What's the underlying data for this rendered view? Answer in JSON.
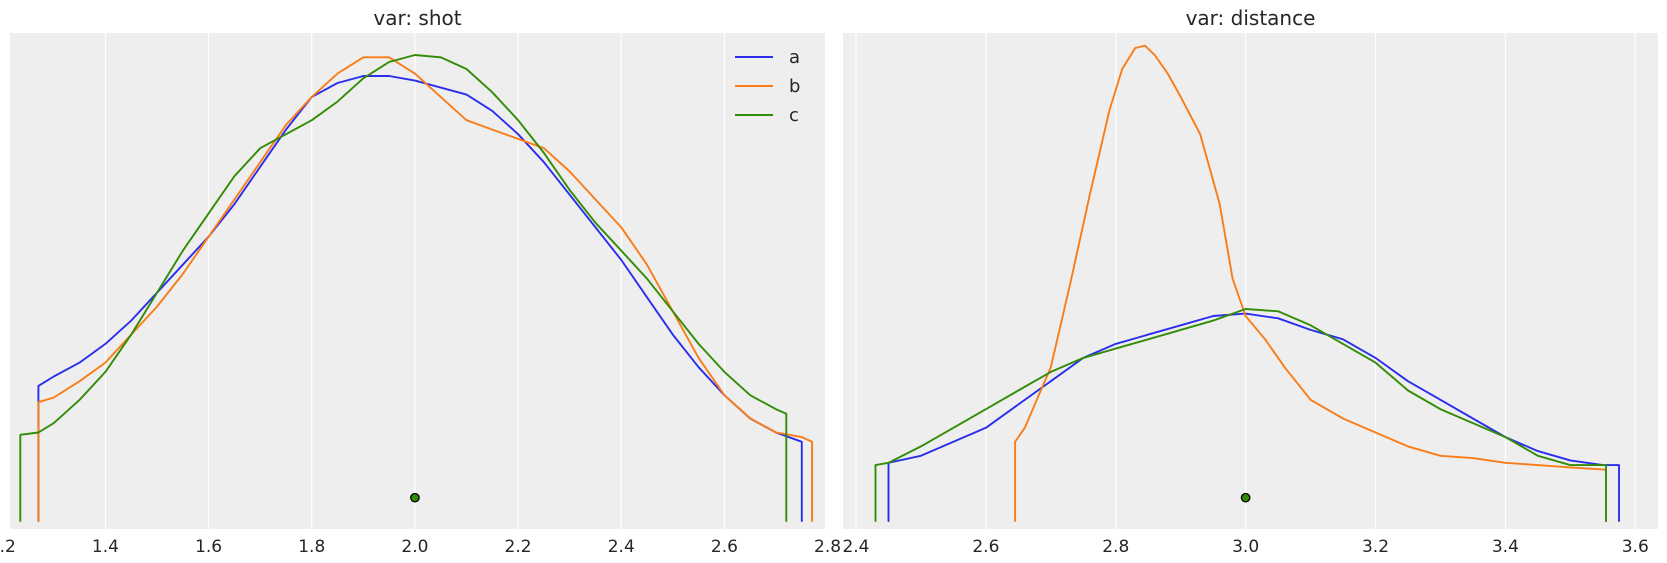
{
  "chart_data": [
    {
      "type": "line",
      "title": "var: shot",
      "xlabel": "",
      "ylabel": "",
      "xlim": [
        1.215,
        2.795
      ],
      "ylim": [
        0,
        1.0
      ],
      "xticks": [
        1.2,
        1.4,
        1.6,
        1.8,
        2.0,
        2.2,
        2.4,
        2.6,
        2.8
      ],
      "xtick_labels": [
        "1.2",
        "1.4",
        "1.6",
        "1.8",
        "2.0",
        "2.2",
        "2.4",
        "2.6",
        "2.8"
      ],
      "grid": "x",
      "legend": {
        "position": "top-right",
        "entries": [
          "a",
          "b",
          "c"
        ]
      },
      "point_marker": {
        "x": 2.0,
        "y": 0.05
      },
      "series": [
        {
          "name": "a",
          "color": "#2a2eec",
          "x": [
            1.27,
            1.27,
            1.3,
            1.35,
            1.4,
            1.45,
            1.5,
            1.55,
            1.6,
            1.65,
            1.7,
            1.75,
            1.8,
            1.85,
            1.9,
            1.95,
            2.0,
            2.05,
            2.1,
            2.15,
            2.2,
            2.25,
            2.3,
            2.35,
            2.4,
            2.45,
            2.5,
            2.55,
            2.6,
            2.65,
            2.7,
            2.75,
            2.75
          ],
          "y": [
            0.0,
            0.29,
            0.31,
            0.34,
            0.38,
            0.43,
            0.49,
            0.55,
            0.61,
            0.68,
            0.76,
            0.84,
            0.91,
            0.94,
            0.955,
            0.955,
            0.945,
            0.93,
            0.915,
            0.88,
            0.83,
            0.77,
            0.7,
            0.63,
            0.56,
            0.48,
            0.4,
            0.33,
            0.27,
            0.22,
            0.19,
            0.17,
            0.0
          ]
        },
        {
          "name": "b",
          "color": "#fa7c17",
          "x": [
            1.27,
            1.27,
            1.3,
            1.35,
            1.4,
            1.45,
            1.5,
            1.55,
            1.6,
            1.65,
            1.7,
            1.75,
            1.8,
            1.85,
            1.9,
            1.95,
            2.0,
            2.05,
            2.1,
            2.15,
            2.2,
            2.25,
            2.3,
            2.35,
            2.4,
            2.45,
            2.5,
            2.55,
            2.6,
            2.65,
            2.7,
            2.75,
            2.77,
            2.77
          ],
          "y": [
            0.0,
            0.255,
            0.265,
            0.3,
            0.34,
            0.4,
            0.46,
            0.53,
            0.61,
            0.69,
            0.77,
            0.85,
            0.91,
            0.96,
            0.995,
            0.995,
            0.96,
            0.91,
            0.86,
            0.84,
            0.82,
            0.8,
            0.75,
            0.69,
            0.63,
            0.55,
            0.45,
            0.35,
            0.27,
            0.22,
            0.19,
            0.18,
            0.17,
            0.0
          ]
        },
        {
          "name": "c",
          "color": "#328c06",
          "x": [
            1.235,
            1.235,
            1.27,
            1.3,
            1.35,
            1.4,
            1.45,
            1.5,
            1.55,
            1.6,
            1.65,
            1.7,
            1.75,
            1.8,
            1.85,
            1.9,
            1.95,
            2.0,
            2.05,
            2.1,
            2.15,
            2.2,
            2.25,
            2.3,
            2.35,
            2.4,
            2.45,
            2.5,
            2.55,
            2.6,
            2.65,
            2.7,
            2.72,
            2.72
          ],
          "y": [
            0.0,
            0.185,
            0.19,
            0.21,
            0.26,
            0.32,
            0.4,
            0.49,
            0.58,
            0.66,
            0.74,
            0.8,
            0.83,
            0.86,
            0.9,
            0.95,
            0.985,
            1.0,
            0.995,
            0.97,
            0.92,
            0.86,
            0.79,
            0.71,
            0.64,
            0.58,
            0.52,
            0.45,
            0.38,
            0.32,
            0.27,
            0.24,
            0.23,
            0.0
          ]
        }
      ]
    },
    {
      "type": "line",
      "title": "var: distance",
      "xlabel": "",
      "ylabel": "",
      "xlim": [
        2.38,
        3.635
      ],
      "ylim": [
        0,
        1.0
      ],
      "xticks": [
        2.4,
        2.6,
        2.8,
        3.0,
        3.2,
        3.4,
        3.6
      ],
      "xtick_labels": [
        "2.4",
        "2.6",
        "2.8",
        "3.0",
        "3.2",
        "3.4",
        "3.6"
      ],
      "grid": "x",
      "point_marker": {
        "x": 3.0,
        "y": 0.05
      },
      "series": [
        {
          "name": "a",
          "color": "#2a2eec",
          "x": [
            2.45,
            2.45,
            2.5,
            2.55,
            2.6,
            2.65,
            2.7,
            2.75,
            2.8,
            2.85,
            2.9,
            2.95,
            3.0,
            3.05,
            3.1,
            3.15,
            3.2,
            3.25,
            3.3,
            3.35,
            3.4,
            3.45,
            3.5,
            3.55,
            3.575,
            3.575
          ],
          "y": [
            0.0,
            0.125,
            0.14,
            0.17,
            0.2,
            0.25,
            0.3,
            0.35,
            0.38,
            0.4,
            0.42,
            0.44,
            0.445,
            0.435,
            0.41,
            0.39,
            0.35,
            0.3,
            0.26,
            0.22,
            0.18,
            0.15,
            0.13,
            0.12,
            0.12,
            0.0
          ]
        },
        {
          "name": "b",
          "color": "#fa7c17",
          "x": [
            2.645,
            2.645,
            2.66,
            2.7,
            2.73,
            2.76,
            2.79,
            2.81,
            2.83,
            2.845,
            2.86,
            2.88,
            2.9,
            2.93,
            2.96,
            2.98,
            3.0,
            3.03,
            3.06,
            3.1,
            3.15,
            3.2,
            3.25,
            3.3,
            3.35,
            3.4,
            3.45,
            3.5,
            3.555,
            3.555
          ],
          "y": [
            0.0,
            0.17,
            0.2,
            0.33,
            0.51,
            0.7,
            0.88,
            0.97,
            1.015,
            1.02,
            1.0,
            0.96,
            0.91,
            0.83,
            0.68,
            0.52,
            0.44,
            0.39,
            0.33,
            0.26,
            0.22,
            0.19,
            0.16,
            0.14,
            0.135,
            0.125,
            0.12,
            0.115,
            0.11,
            0.0
          ]
        },
        {
          "name": "c",
          "color": "#328c06",
          "x": [
            2.43,
            2.43,
            2.45,
            2.5,
            2.55,
            2.6,
            2.65,
            2.7,
            2.75,
            2.8,
            2.85,
            2.9,
            2.95,
            3.0,
            3.05,
            3.1,
            3.15,
            3.2,
            3.25,
            3.3,
            3.35,
            3.4,
            3.45,
            3.5,
            3.555,
            3.555
          ],
          "y": [
            0.0,
            0.12,
            0.125,
            0.16,
            0.2,
            0.24,
            0.28,
            0.32,
            0.35,
            0.37,
            0.39,
            0.41,
            0.43,
            0.455,
            0.45,
            0.42,
            0.38,
            0.34,
            0.28,
            0.24,
            0.21,
            0.18,
            0.14,
            0.12,
            0.12,
            0.0
          ]
        }
      ]
    }
  ]
}
